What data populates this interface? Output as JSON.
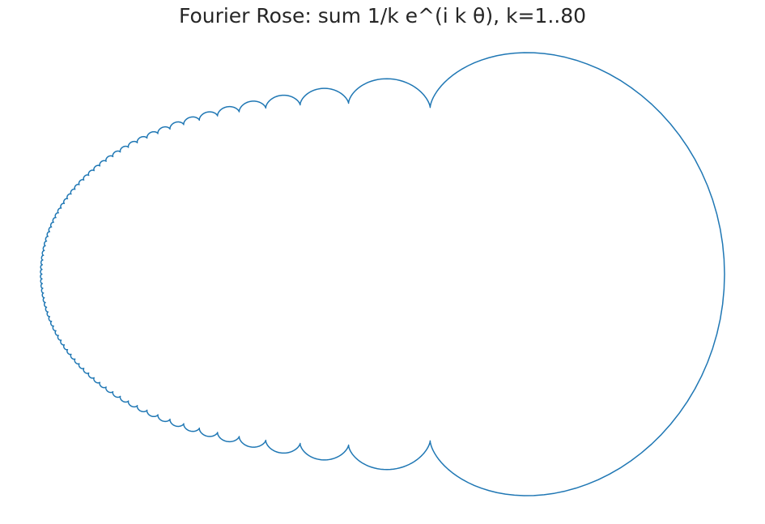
{
  "chart_data": {
    "type": "line",
    "title": "Fourier Rose: sum 1/k e^(i k θ), k=1..80",
    "xlabel": "",
    "ylabel": "",
    "axes_visible": false,
    "grid": false,
    "legend": "none",
    "aspect": "equal",
    "curve": {
      "kind": "parametric",
      "parameter": "θ",
      "parameter_range": [
        0,
        6.283185307179586
      ],
      "x": "sum_{k=1}^{80} cos(kθ)/k",
      "y": "sum_{k=1}^{80} sin(kθ)/k",
      "k_min": 1,
      "k_max": 80,
      "samples": 4000
    },
    "series": [
      {
        "color": "#1f77b4"
      }
    ]
  }
}
